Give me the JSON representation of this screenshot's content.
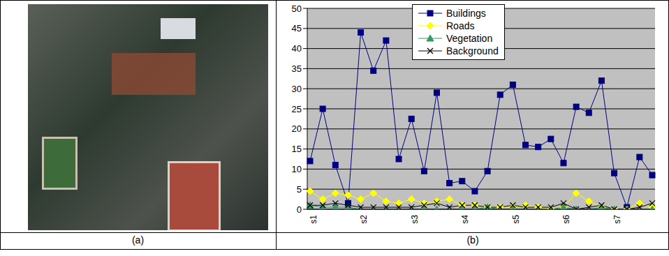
{
  "chart_data": {
    "type": "line",
    "categories": [
      "s1",
      null,
      null,
      null,
      "s2",
      null,
      null,
      null,
      "s3",
      null,
      null,
      null,
      "s4",
      null,
      null,
      null,
      "s5",
      null,
      null,
      null,
      "s6",
      null,
      null,
      null,
      "s7",
      null,
      null,
      null
    ],
    "series": [
      {
        "name": "Buildings",
        "color": "#000080",
        "marker": "square",
        "values": [
          12,
          25,
          11,
          1.5,
          44,
          34.5,
          42,
          12.5,
          22.5,
          9.5,
          29,
          6.5,
          7,
          4.5,
          9.5,
          28.5,
          31,
          16,
          15.5,
          17.5,
          11.5,
          25.5,
          24,
          32,
          9,
          0.5,
          13,
          8.5
        ]
      },
      {
        "name": "Roads",
        "color": "#FFFF00",
        "marker": "diamond",
        "values": [
          4.5,
          2.5,
          4,
          3.5,
          2.5,
          4,
          2,
          1.5,
          2.5,
          1.5,
          2,
          2.5,
          1,
          1,
          0.5,
          0.5,
          0.5,
          1,
          0.5,
          0,
          0.5,
          4,
          2,
          0.5,
          0,
          0,
          1.5,
          0.5
        ]
      },
      {
        "name": "Vegetation",
        "color": "#339966",
        "marker": "triangle",
        "values": [
          1,
          0.5,
          0.5,
          0.5,
          0,
          0,
          0,
          0,
          0,
          0,
          0,
          0,
          0,
          0,
          0.5,
          0,
          0,
          0,
          0,
          0,
          0.5,
          0,
          0,
          0.5,
          0,
          0,
          0,
          0
        ]
      },
      {
        "name": "Background",
        "color": "#000000",
        "marker": "x",
        "values": [
          1,
          1,
          1.5,
          1,
          0.5,
          0.5,
          0.5,
          0.5,
          0.5,
          1,
          1.5,
          0.5,
          1,
          1,
          0.5,
          0.5,
          1,
          0.5,
          0.5,
          0.5,
          1.5,
          0,
          0.5,
          1,
          0,
          0,
          0.5,
          1.5
        ]
      }
    ],
    "ylim": [
      0,
      50
    ],
    "yticks": [
      0,
      5,
      10,
      15,
      20,
      25,
      30,
      35,
      40,
      45,
      50
    ],
    "grid": true,
    "legend": "top"
  },
  "panel_labels": [
    "(a)",
    "(b)"
  ]
}
